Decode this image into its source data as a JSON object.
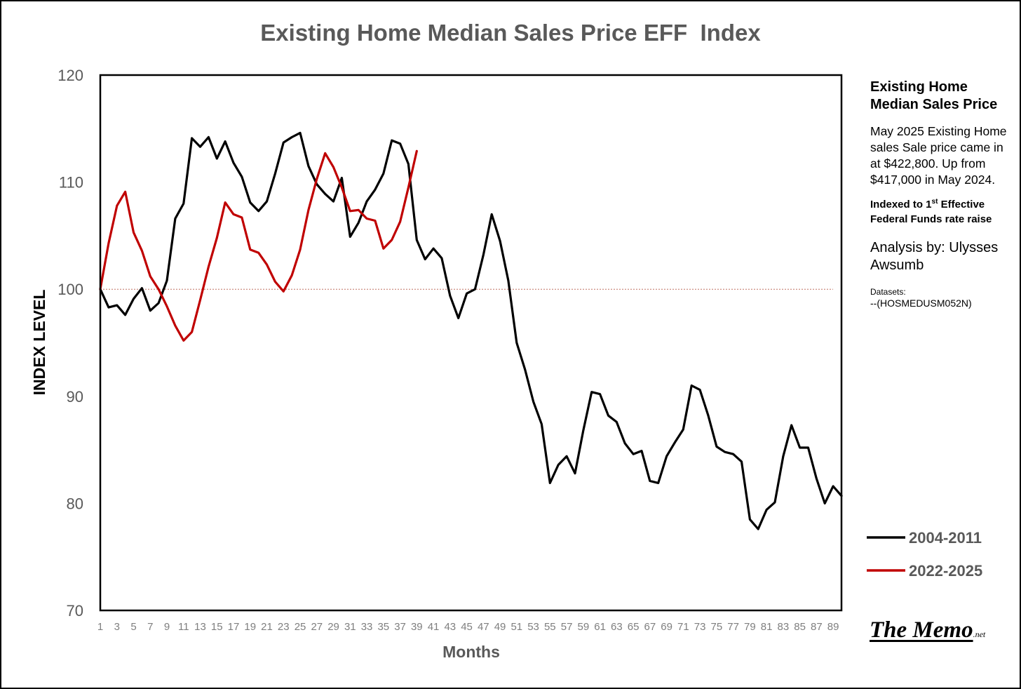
{
  "chart_data": {
    "type": "line",
    "title": "Existing Home Median Sales Price EFF  Index",
    "xlabel": "Months",
    "ylabel": "INDEX LEVEL",
    "ylim": [
      70,
      120
    ],
    "yticks": [
      70,
      80,
      90,
      100,
      110,
      120
    ],
    "xlim": [
      1,
      90
    ],
    "xticks": [
      1,
      3,
      5,
      7,
      9,
      11,
      13,
      15,
      17,
      19,
      21,
      23,
      25,
      27,
      29,
      31,
      33,
      35,
      37,
      39,
      41,
      43,
      45,
      47,
      49,
      51,
      53,
      55,
      57,
      59,
      61,
      63,
      65,
      67,
      69,
      71,
      73,
      75,
      77,
      79,
      81,
      83,
      85,
      87,
      89
    ],
    "reference_line": 100,
    "grid": false,
    "legend_position": "right",
    "series": [
      {
        "name": "2004-2011",
        "color": "#000000",
        "values": [
          100.0,
          98.3,
          98.5,
          97.6,
          99.1,
          100.1,
          98.0,
          98.7,
          100.8,
          106.6,
          108.0,
          114.1,
          113.3,
          114.2,
          112.2,
          113.8,
          111.8,
          110.5,
          108.1,
          107.3,
          108.2,
          110.8,
          113.7,
          114.2,
          114.6,
          111.5,
          109.8,
          108.9,
          108.2,
          110.4,
          104.9,
          106.2,
          108.2,
          109.3,
          110.8,
          113.9,
          113.6,
          111.7,
          104.6,
          102.8,
          103.8,
          102.9,
          99.4,
          97.3,
          99.6,
          100.0,
          103.2,
          107.0,
          104.5,
          100.8,
          95.0,
          92.5,
          89.5,
          87.4,
          81.9,
          83.6,
          84.4,
          82.8,
          86.8,
          90.4,
          90.2,
          88.2,
          87.6,
          85.6,
          84.6,
          84.9,
          82.1,
          81.9,
          84.4,
          85.7,
          86.9,
          91.0,
          90.6,
          88.2,
          85.3,
          84.8,
          84.6,
          83.9,
          78.5,
          77.6,
          79.4,
          80.1,
          84.4,
          87.3,
          85.2,
          85.2,
          82.3,
          80.0,
          81.6,
          80.7
        ]
      },
      {
        "name": "2022-2025",
        "color": "#c00000",
        "values": [
          100.0,
          104.3,
          107.8,
          109.1,
          105.3,
          103.6,
          101.2,
          100.0,
          98.4,
          96.6,
          95.2,
          96.0,
          99.0,
          102.1,
          104.8,
          108.1,
          107.0,
          106.7,
          103.7,
          103.4,
          102.3,
          100.7,
          99.8,
          101.3,
          103.7,
          107.4,
          110.3,
          112.7,
          111.4,
          109.5,
          107.3,
          107.4,
          106.6,
          106.4,
          103.8,
          104.6,
          106.3,
          109.5,
          112.9
        ]
      }
    ]
  },
  "sidebar": {
    "title": "Existing Home Median Sales Price",
    "body": "May 2025 Existing Home sales Sale price came in at $422,800. Up from $417,000 in May 2024.",
    "indexed_pre": "Indexed to 1",
    "indexed_sup": "st",
    "indexed_post": " Effective Federal Funds rate raise",
    "analysis": "Analysis by: Ulysses Awsumb",
    "datasets_label": "Datasets:",
    "datasets_value": "--(HOSMEDUSM052N)"
  },
  "logo": {
    "main": "The Memo",
    "suffix": ".net"
  },
  "colors": {
    "ref_line": "#c07060",
    "axis_text": "#595959",
    "tick_text": "#7f7f7f"
  }
}
